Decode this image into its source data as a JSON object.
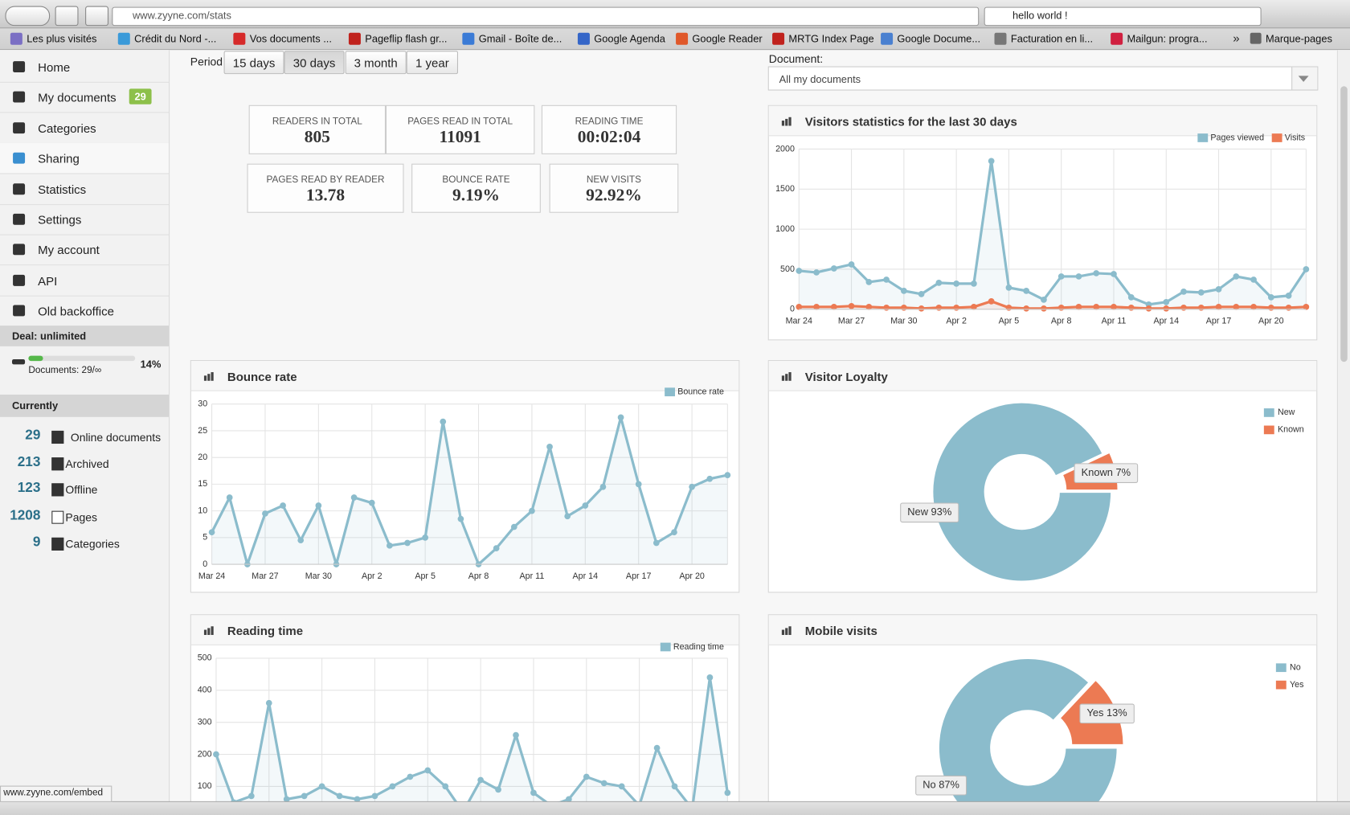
{
  "browser": {
    "url": "www.zyyne.com/stats",
    "search": "hello world !",
    "bookmarks": [
      "Les plus visités",
      "Crédit du Nord -...",
      "Vos documents ...",
      "Pageflip flash gr...",
      "Gmail - Boîte de...",
      "Google Agenda",
      "Google Reader",
      "MRTG Index Page",
      "Google Docume...",
      "Facturation en li...",
      "Mailgun: progra..."
    ],
    "overflow": "»",
    "bookmarks_folder": "Marque-pages",
    "status": "www.zyyne.com/embed"
  },
  "sidebar": {
    "nav": [
      {
        "label": "Home"
      },
      {
        "label": "My documents",
        "badge": "29"
      },
      {
        "label": "Categories"
      },
      {
        "label": "Sharing"
      },
      {
        "label": "Statistics"
      },
      {
        "label": "Settings"
      },
      {
        "label": "My account"
      },
      {
        "label": "API"
      },
      {
        "label": "Old backoffice"
      }
    ],
    "deal": "Deal: unlimited",
    "documents": "Documents: 29/∞",
    "usage": {
      "value": 14,
      "label": "14%"
    },
    "currently": "Currently",
    "current": [
      {
        "count": "29",
        "label": "Online documents"
      },
      {
        "count": "213",
        "label": "Archived"
      },
      {
        "count": "123",
        "label": "Offline"
      },
      {
        "count": "1208",
        "label": "Pages"
      },
      {
        "count": "9",
        "label": "Categories"
      }
    ]
  },
  "period": {
    "label": "Period",
    "options": [
      "15 days",
      "30 days",
      "3 month",
      "1 year"
    ],
    "active": 1
  },
  "stats": [
    {
      "label": "READERS IN TOTAL",
      "value": "805"
    },
    {
      "label": "PAGES READ IN TOTAL",
      "value": "11091"
    },
    {
      "label": "READING TIME",
      "value": "00:02:04"
    },
    {
      "label": "PAGES READ BY READER",
      "value": "13.78"
    },
    {
      "label": "BOUNCE RATE",
      "value": "9.19%"
    },
    {
      "label": "NEW VISITS",
      "value": "92.92%"
    }
  ],
  "document": {
    "label": "Document:",
    "selected": "All my documents"
  },
  "chart_data": [
    {
      "type": "line",
      "title": "Visitors statistics for the last 30 days",
      "categories": [
        "Mar 24",
        null,
        null,
        "Mar 27",
        null,
        null,
        "Mar 30",
        null,
        null,
        "Apr 2",
        null,
        null,
        "Apr 5",
        null,
        null,
        "Apr 8",
        null,
        null,
        "Apr 11",
        null,
        null,
        "Apr 14",
        null,
        null,
        "Apr 17",
        null,
        null,
        "Apr 20",
        null,
        null
      ],
      "series": [
        {
          "name": "Pages viewed",
          "color": "#8bbccc",
          "values": [
            480,
            460,
            510,
            560,
            340,
            370,
            230,
            190,
            330,
            320,
            320,
            1850,
            270,
            230,
            120,
            410,
            410,
            450,
            440,
            150,
            60,
            90,
            220,
            210,
            250,
            410,
            370,
            150,
            170,
            500
          ]
        },
        {
          "name": "Visits",
          "color": "#ec7a53",
          "values": [
            30,
            30,
            30,
            40,
            30,
            20,
            20,
            10,
            20,
            20,
            30,
            100,
            20,
            10,
            10,
            20,
            30,
            30,
            30,
            20,
            10,
            10,
            20,
            20,
            30,
            30,
            30,
            20,
            20,
            30
          ]
        }
      ],
      "ylim": [
        0,
        2000
      ],
      "yticks": [
        0,
        500,
        1000,
        1500,
        2000
      ],
      "grid": true
    },
    {
      "type": "line",
      "title": "Bounce rate",
      "categories": [
        "Mar 24",
        null,
        null,
        "Mar 27",
        null,
        null,
        "Mar 30",
        null,
        null,
        "Apr 2",
        null,
        null,
        "Apr 5",
        null,
        null,
        "Apr 8",
        null,
        null,
        "Apr 11",
        null,
        null,
        "Apr 14",
        null,
        null,
        "Apr 17",
        null,
        null,
        "Apr 20",
        null,
        null
      ],
      "series": [
        {
          "name": "Bounce rate",
          "color": "#8bbccc",
          "values": [
            6,
            12.5,
            0,
            9.5,
            11,
            4.5,
            11,
            0,
            12.5,
            11.5,
            3.5,
            4,
            5,
            26.7,
            8.5,
            0,
            3,
            7,
            10,
            22,
            9,
            11,
            14.5,
            27.5,
            15,
            4,
            6,
            14.5,
            16,
            16.7
          ]
        }
      ],
      "ylim": [
        0,
        30
      ],
      "yticks": [
        0,
        5,
        10,
        15,
        20,
        25,
        30
      ],
      "grid": true
    },
    {
      "type": "line",
      "title": "Reading time",
      "categories": [
        null,
        null,
        null,
        null,
        null,
        null,
        null,
        null,
        null,
        null,
        null,
        null,
        null,
        null,
        null,
        null,
        null,
        null,
        null,
        null,
        null,
        null,
        null,
        null,
        null,
        null,
        null,
        null,
        null,
        null
      ],
      "series": [
        {
          "name": "Reading time",
          "color": "#8bbccc",
          "values": [
            200,
            50,
            70,
            360,
            60,
            70,
            100,
            70,
            60,
            70,
            100,
            130,
            150,
            100,
            20,
            120,
            90,
            260,
            80,
            40,
            60,
            130,
            110,
            100,
            40,
            220,
            100,
            30,
            440,
            80
          ]
        }
      ],
      "ylim": [
        0,
        500
      ],
      "yticks": [
        100,
        200,
        300,
        400,
        500
      ],
      "grid": true
    },
    {
      "type": "pie",
      "title": "Visitor Loyalty",
      "categories": [
        "New",
        "Known"
      ],
      "values": [
        93,
        7
      ],
      "value_labels": [
        "New 93%",
        "Known 7%"
      ],
      "colors": [
        "#8bbccc",
        "#ec7a53"
      ]
    },
    {
      "type": "pie",
      "title": "Mobile visits",
      "categories": [
        "No",
        "Yes"
      ],
      "values": [
        87,
        13
      ],
      "value_labels": [
        "No 87%",
        "Yes 13%"
      ],
      "colors": [
        "#8bbccc",
        "#ec7a53"
      ]
    }
  ]
}
